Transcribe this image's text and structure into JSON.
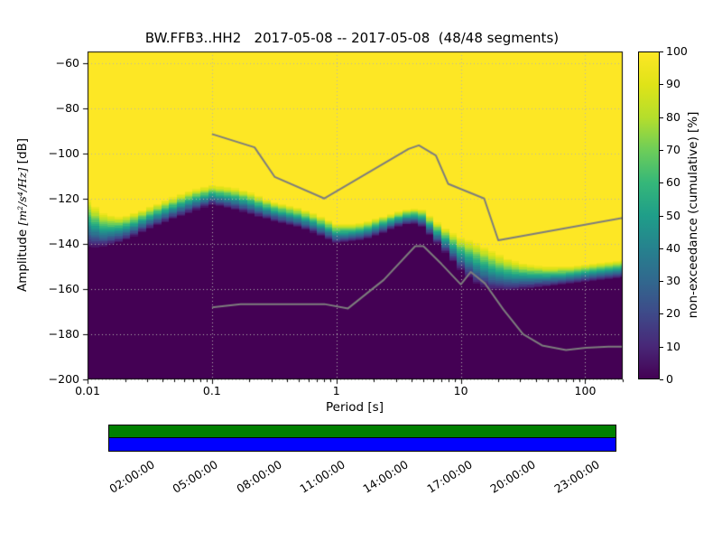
{
  "title": "BW.FFB3..HH2   2017-05-08 -- 2017-05-08  (48/48 segments)",
  "xlabel": "Period [s]",
  "ylabel": {
    "prefix": "Amplitude ",
    "math": "[m²/s⁴/Hz]",
    "suffix": " [dB]"
  },
  "colorbar_label": "non-exceedance (cumulative) [%]",
  "x_ticks": {
    "values": [
      0.01,
      0.1,
      1,
      10,
      100
    ],
    "labels": [
      "0.01",
      "0.1",
      "1",
      "10",
      "100"
    ]
  },
  "y_ticks": {
    "values": [
      -60,
      -80,
      -100,
      -120,
      -140,
      -160,
      -180,
      -200
    ],
    "labels": [
      "−60",
      "−80",
      "−100",
      "−120",
      "−140",
      "−160",
      "−180",
      "−200"
    ]
  },
  "colorbar_ticks": {
    "values": [
      0,
      10,
      20,
      30,
      40,
      50,
      60,
      70,
      80,
      90,
      100
    ],
    "labels": [
      "0",
      "10",
      "20",
      "30",
      "40",
      "50",
      "60",
      "70",
      "80",
      "90",
      "100"
    ]
  },
  "timeline": {
    "bar_color_top": "#008000",
    "bar_color_bottom": "#0000ff",
    "tick_hours": [
      2,
      5,
      8,
      11,
      14,
      17,
      20,
      23
    ],
    "tick_labels": [
      "02:00:00",
      "05:00:00",
      "08:00:00",
      "11:00:00",
      "14:00:00",
      "17:00:00",
      "20:00:00",
      "23:00:00"
    ]
  },
  "chart_data": {
    "type": "heatmap",
    "title": "BW.FFB3..HH2   2017-05-08 -- 2017-05-08  (48/48 segments)",
    "xlabel": "Period [s]",
    "ylabel": "Amplitude [m^2/s^4/Hz] [dB]",
    "xscale": "log",
    "xlim": [
      0.01,
      200
    ],
    "ylim": [
      -200,
      -55
    ],
    "grid": true,
    "colormap": "viridis",
    "colorbar_label": "non-exceedance (cumulative) [%]",
    "colorbar_range": [
      0,
      100
    ],
    "cumulative_boundary": {
      "description": "PPSD cumulative non-exceedance: 100% (yellow) above db_100pct, 0% (dark) below db_0pct, viridis gradient between",
      "periods": [
        0.01,
        0.013,
        0.017,
        0.022,
        0.03,
        0.05,
        0.07,
        0.1,
        0.15,
        0.2,
        0.3,
        0.5,
        0.7,
        1.0,
        1.5,
        2.0,
        3.0,
        4.0,
        5.0,
        6.0,
        8.0,
        10,
        13,
        18,
        25,
        35,
        50,
        70,
        100,
        150,
        200
      ],
      "db_100pct": [
        -120,
        -126,
        -128,
        -127,
        -124,
        -119,
        -116,
        -114,
        -115,
        -117,
        -121,
        -124,
        -127,
        -131,
        -131,
        -129,
        -126,
        -124,
        -125,
        -129,
        -134,
        -137,
        -139,
        -143,
        -147,
        -149,
        -150,
        -150,
        -149,
        -148,
        -147
      ],
      "db_0pct": [
        -142,
        -142,
        -140,
        -138,
        -134,
        -129,
        -126,
        -123,
        -125,
        -127,
        -130,
        -133,
        -136,
        -140,
        -139,
        -137,
        -133,
        -131,
        -133,
        -138,
        -146,
        -152,
        -158,
        -161,
        -161,
        -160,
        -159,
        -158,
        -157,
        -156,
        -155
      ]
    },
    "noise_models": {
      "high_noise_model": {
        "periods": [
          0.1,
          0.22,
          0.32,
          0.8,
          3.8,
          4.6,
          6.3,
          7.9,
          15.4,
          20,
          200
        ],
        "db": [
          -91.5,
          -97.4,
          -110.5,
          -120,
          -98.1,
          -96.5,
          -101,
          -113.5,
          -120,
          -138.5,
          -128.6
        ]
      },
      "low_noise_model": {
        "periods": [
          0.1,
          0.17,
          0.4,
          0.8,
          1.24,
          2.4,
          4.3,
          5,
          7,
          10,
          12,
          15.6,
          21.9,
          31.6,
          45,
          70,
          101,
          154,
          200
        ],
        "db": [
          -168.1,
          -166.7,
          -166.7,
          -166.7,
          -168.6,
          -156,
          -141.1,
          -141.1,
          -149,
          -158,
          -152.5,
          -157.5,
          -169,
          -180,
          -185,
          -187,
          -186,
          -185.5,
          -185.5
        ]
      },
      "line_color": "#7d7d7d"
    },
    "viridis_stops": [
      [
        0.0,
        [
          68,
          1,
          84
        ]
      ],
      [
        0.1,
        [
          72,
          40,
          120
        ]
      ],
      [
        0.2,
        [
          62,
          74,
          137
        ]
      ],
      [
        0.3,
        [
          49,
          104,
          142
        ]
      ],
      [
        0.4,
        [
          38,
          130,
          142
        ]
      ],
      [
        0.5,
        [
          31,
          158,
          137
        ]
      ],
      [
        0.6,
        [
          53,
          183,
          121
        ]
      ],
      [
        0.7,
        [
          109,
          205,
          89
        ]
      ],
      [
        0.8,
        [
          180,
          222,
          44
        ]
      ],
      [
        0.9,
        [
          223,
          227,
          24
        ]
      ],
      [
        1.0,
        [
          253,
          231,
          37
        ]
      ]
    ],
    "coverage_bar": {
      "description": "data coverage over 2017-05-08, 00:00:00-24:00:00",
      "segments_used": 48,
      "segments_total": 48,
      "colors": [
        "#008000",
        "#0000ff"
      ]
    }
  }
}
